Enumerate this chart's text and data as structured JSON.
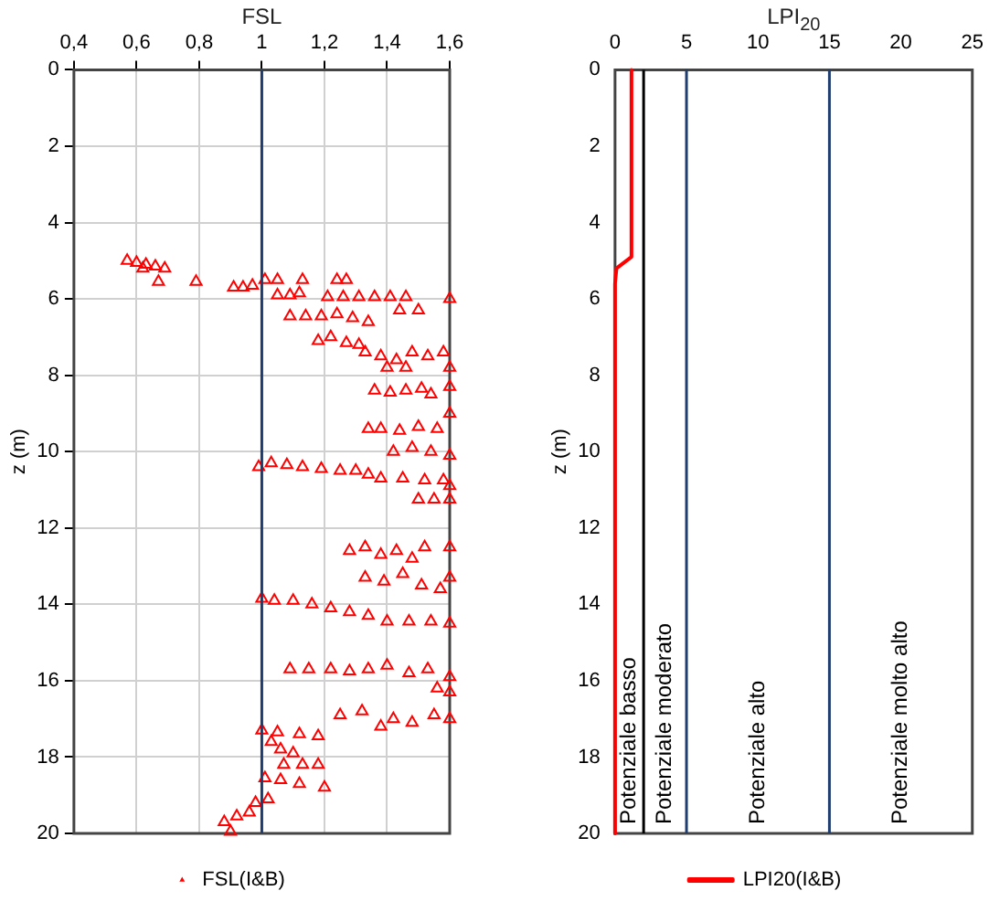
{
  "chart_data": [
    {
      "type": "scatter",
      "title": "FSL",
      "ylabel": "z (m)",
      "xlim": [
        0.4,
        1.6
      ],
      "xticks": [
        {
          "value": 0.4,
          "label": "0,4"
        },
        {
          "value": 0.6,
          "label": "0,6"
        },
        {
          "value": 0.8,
          "label": "0,8"
        },
        1,
        {
          "value": 1.2,
          "label": "1,2"
        },
        {
          "value": 1.4,
          "label": "1,4"
        },
        {
          "value": 1.6,
          "label": "1,6"
        }
      ],
      "ylim": [
        20,
        0
      ],
      "yticks": [
        0,
        2,
        4,
        6,
        8,
        10,
        12,
        14,
        16,
        18,
        20
      ],
      "grid": true,
      "legend": "bottom",
      "marker": "triangle",
      "ref_lines": [
        {
          "axis": "x",
          "value": 1,
          "color": "#1f3d6e"
        }
      ],
      "series": [
        {
          "name": "FSL(I&B)",
          "color": "#ff0000",
          "x": [
            0.57,
            0.6,
            0.63,
            0.66,
            0.69,
            0.62,
            0.67,
            0.79,
            0.91,
            0.94,
            0.97,
            1.01,
            1.05,
            1.13,
            1.24,
            1.27,
            1.05,
            1.09,
            1.12,
            1.21,
            1.26,
            1.31,
            1.36,
            1.41,
            1.46,
            1.6,
            1.09,
            1.14,
            1.19,
            1.24,
            1.29,
            1.34,
            1.44,
            1.5,
            1.18,
            1.22,
            1.27,
            1.31,
            1.33,
            1.38,
            1.43,
            1.48,
            1.53,
            1.58,
            1.6,
            1.46,
            1.4,
            1.36,
            1.41,
            1.46,
            1.51,
            1.54,
            1.6,
            1.34,
            1.38,
            1.44,
            1.5,
            1.56,
            1.6,
            1.42,
            1.48,
            1.54,
            1.6,
            0.99,
            1.03,
            1.08,
            1.13,
            1.19,
            1.25,
            1.3,
            1.34,
            1.38,
            1.45,
            1.52,
            1.58,
            1.6,
            1.5,
            1.55,
            1.6,
            1.28,
            1.33,
            1.38,
            1.43,
            1.48,
            1.52,
            1.6,
            1.33,
            1.39,
            1.45,
            1.51,
            1.57,
            1.6,
            1.0,
            1.04,
            1.1,
            1.16,
            1.22,
            1.28,
            1.34,
            1.4,
            1.47,
            1.54,
            1.6,
            1.09,
            1.15,
            1.22,
            1.28,
            1.34,
            1.4,
            1.47,
            1.53,
            1.6,
            1.56,
            1.6,
            1.25,
            1.32,
            1.38,
            1.42,
            1.48,
            1.55,
            1.6,
            1.0,
            1.05,
            1.12,
            1.18,
            1.03,
            1.06,
            1.1,
            1.07,
            1.13,
            1.18,
            1.01,
            1.06,
            1.12,
            1.2,
            1.02,
            0.98,
            0.96,
            0.92,
            0.88,
            0.9
          ],
          "values": [
            5.0,
            5.05,
            5.1,
            5.15,
            5.2,
            5.2,
            5.55,
            5.55,
            5.7,
            5.7,
            5.65,
            5.5,
            5.5,
            5.5,
            5.5,
            5.5,
            5.9,
            5.9,
            5.85,
            5.95,
            5.95,
            5.95,
            5.95,
            5.95,
            5.95,
            6.0,
            6.45,
            6.45,
            6.45,
            6.4,
            6.5,
            6.6,
            6.3,
            6.3,
            7.1,
            7.0,
            7.15,
            7.2,
            7.4,
            7.5,
            7.6,
            7.4,
            7.5,
            7.4,
            7.8,
            7.8,
            7.8,
            8.4,
            8.45,
            8.4,
            8.35,
            8.5,
            8.3,
            9.4,
            9.4,
            9.45,
            9.35,
            9.4,
            9.0,
            10.0,
            9.9,
            10.0,
            10.1,
            10.4,
            10.3,
            10.35,
            10.4,
            10.45,
            10.5,
            10.5,
            10.6,
            10.7,
            10.7,
            10.75,
            10.75,
            10.9,
            11.25,
            11.25,
            11.25,
            12.6,
            12.5,
            12.7,
            12.6,
            12.8,
            12.5,
            12.5,
            13.3,
            13.4,
            13.2,
            13.5,
            13.6,
            13.3,
            13.85,
            13.9,
            13.9,
            14.0,
            14.1,
            14.2,
            14.3,
            14.45,
            14.45,
            14.45,
            14.5,
            15.7,
            15.7,
            15.7,
            15.75,
            15.7,
            15.6,
            15.8,
            15.7,
            15.9,
            16.2,
            16.3,
            16.9,
            16.8,
            17.2,
            17.0,
            17.1,
            16.9,
            17.0,
            17.3,
            17.35,
            17.4,
            17.45,
            17.6,
            17.8,
            17.9,
            18.2,
            18.2,
            18.2,
            18.55,
            18.6,
            18.7,
            18.8,
            19.1,
            19.2,
            19.45,
            19.55,
            19.7,
            19.95
          ]
        }
      ]
    },
    {
      "type": "line",
      "title": "LPI$_{20}$",
      "ylabel": "z (m)",
      "xlim": [
        0,
        25
      ],
      "xticks": [
        0,
        5,
        10,
        15,
        20,
        25
      ],
      "ylim": [
        20,
        0
      ],
      "yticks": [
        0,
        2,
        4,
        6,
        8,
        10,
        12,
        14,
        16,
        18,
        20
      ],
      "legend": "bottom",
      "marker": "none",
      "line_style": "solid",
      "ref_lines": [
        {
          "axis": "x",
          "value": 2,
          "color": "#000000"
        },
        {
          "axis": "x",
          "value": 5,
          "color": "#1f3d6e"
        },
        {
          "axis": "x",
          "value": 15,
          "color": "#1f3d6e"
        }
      ],
      "annotations": [
        "Potenziale basso",
        "Potenziale moderato",
        "Potenziale alto",
        "Potenziale molto alto"
      ],
      "series": [
        {
          "name": "LPI20(I&B)",
          "color": "#ff0000",
          "x": [
            1.15,
            1.15,
            0.1,
            0,
            0
          ],
          "values": [
            0,
            4.9,
            5.2,
            5.6,
            20
          ]
        }
      ]
    }
  ]
}
